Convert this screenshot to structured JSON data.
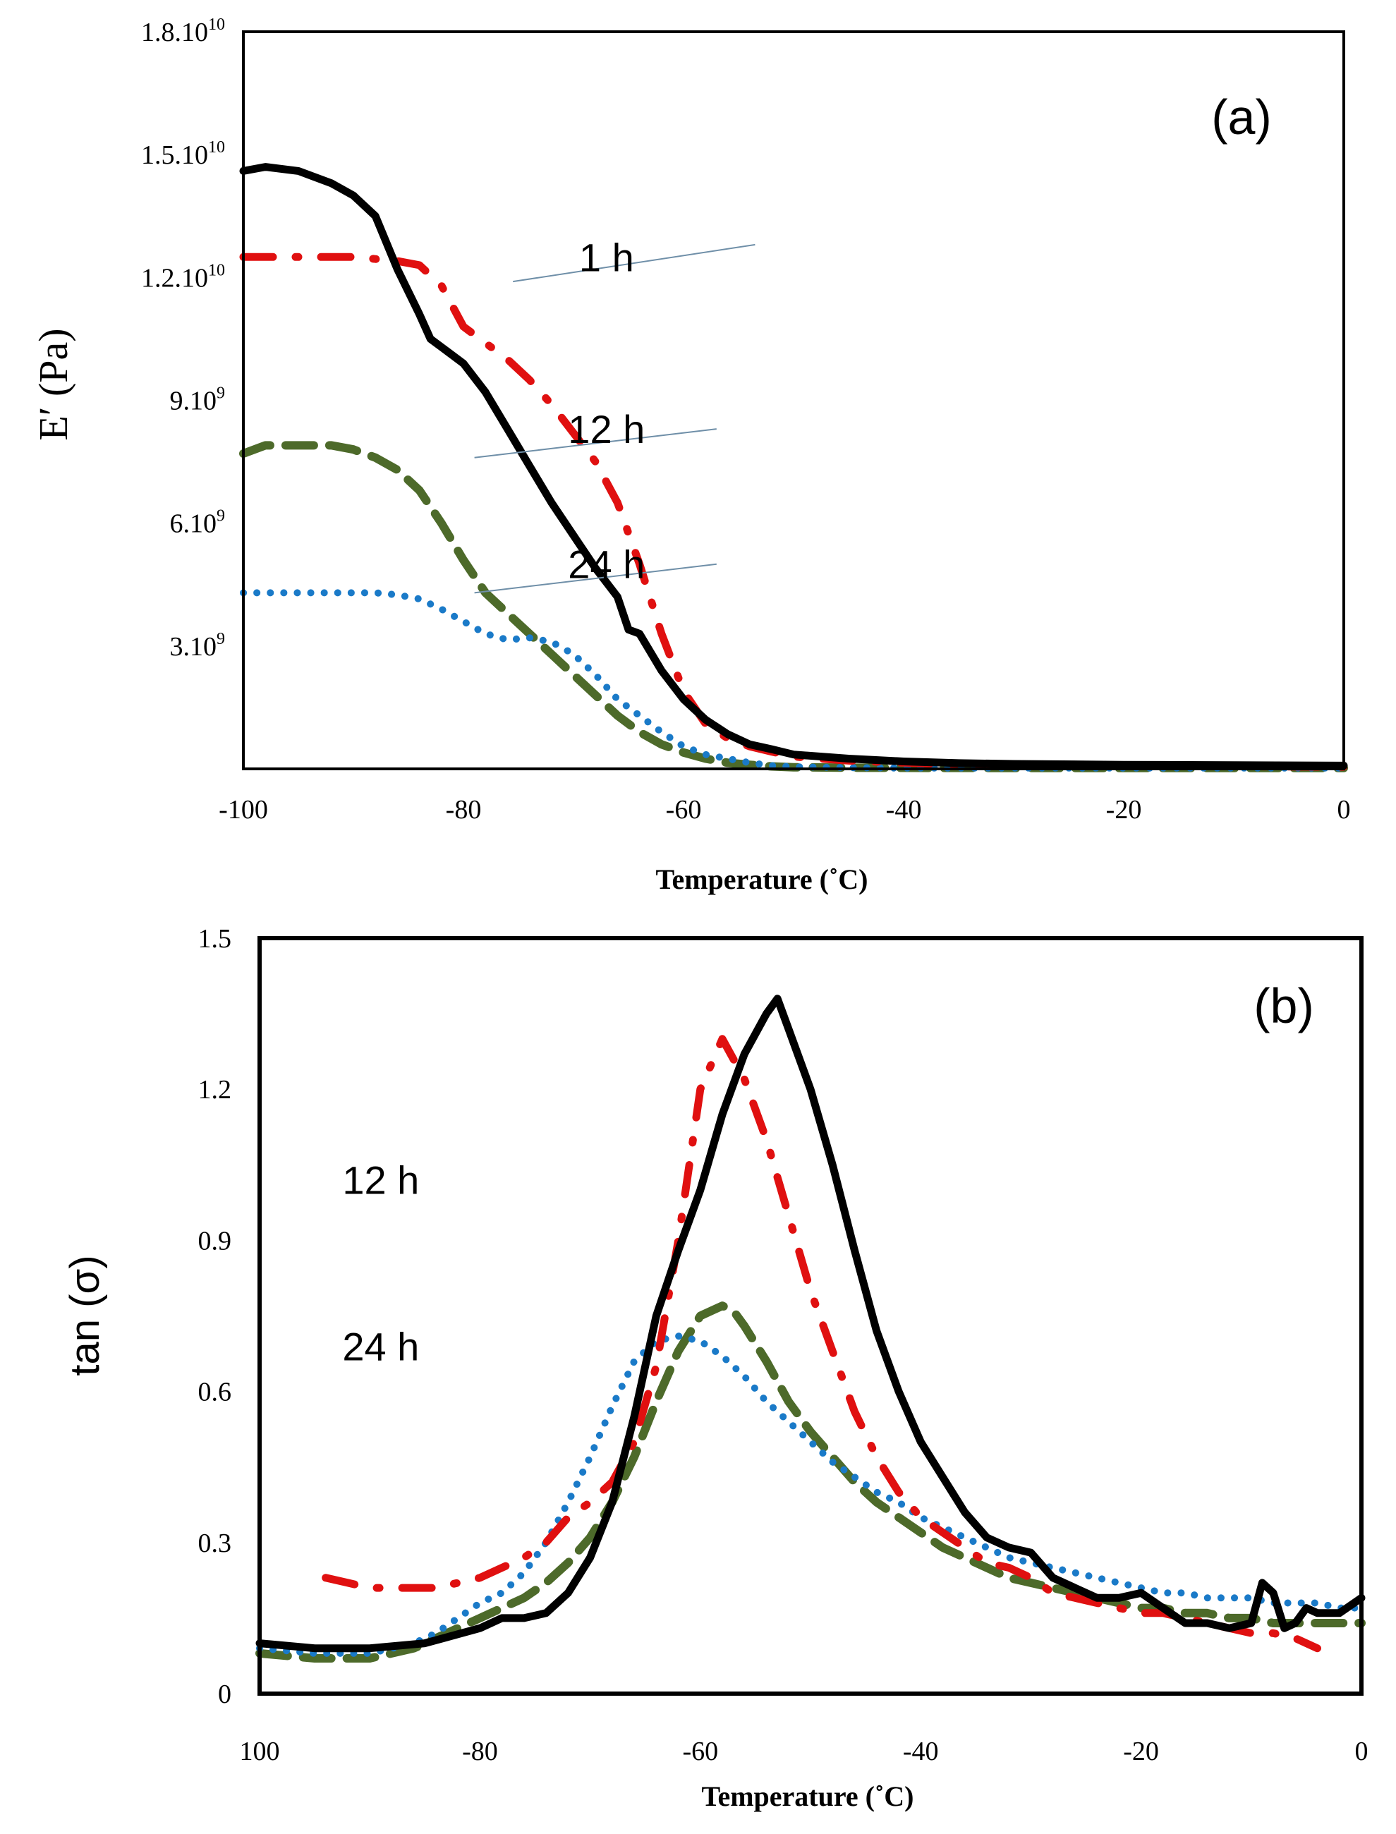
{
  "chart_data": [
    {
      "type": "line",
      "panel_label": "(a)",
      "xlabel": "Temperature (˚C)",
      "ylabel": "E′ (Pa)",
      "xlim": [
        -100,
        0
      ],
      "ylim": [
        0,
        18000000000
      ],
      "x_ticks": [
        {
          "value": -100,
          "label": "-100"
        },
        {
          "value": -80,
          "label": "-80"
        },
        {
          "value": -60,
          "label": "-60"
        },
        {
          "value": -40,
          "label": "-40"
        },
        {
          "value": -20,
          "label": "-20"
        },
        {
          "value": 0,
          "label": "0"
        }
      ],
      "y_ticks": [
        {
          "value": 3000000000,
          "base": "3.10",
          "exp": "9"
        },
        {
          "value": 6000000000,
          "base": "6.10",
          "exp": "9"
        },
        {
          "value": 9000000000,
          "base": "9.10",
          "exp": "9"
        },
        {
          "value": 12000000000,
          "base": "1.2.10",
          "exp": "10"
        },
        {
          "value": 15000000000,
          "base": "1.5.10",
          "exp": "10"
        },
        {
          "value": 18000000000,
          "base": "1.8.10",
          "exp": "10"
        }
      ],
      "annotations": [
        {
          "text": "1 h",
          "x": -67,
          "y": 12500000000,
          "line_from": [
            -75.5,
            11900000000
          ],
          "line_to": [
            -53.5,
            12800000000
          ]
        },
        {
          "text": "12 h",
          "x": -67,
          "y": 8300000000,
          "line_from": [
            -79,
            7600000000
          ],
          "line_to": [
            -57,
            8300000000
          ]
        },
        {
          "text": "24 h",
          "x": -67,
          "y": 5000000000,
          "line_from": [
            -79,
            4300000000
          ],
          "line_to": [
            -57,
            5000000000
          ]
        }
      ],
      "series": [
        {
          "name": "black solid",
          "color": "#000000",
          "style": "solid",
          "x": [
            -100,
            -98,
            -95,
            -92,
            -90,
            -88,
            -86,
            -84,
            -83,
            -82,
            -80,
            -78,
            -76,
            -74,
            -72,
            -70,
            -68,
            -66,
            -65,
            -64,
            -62,
            -60,
            -58,
            -56,
            -54,
            -52,
            -50,
            -45,
            -40,
            -35,
            -30,
            -20,
            -10,
            0
          ],
          "y": [
            14600000000,
            14700000000,
            14600000000,
            14300000000,
            14000000000,
            13500000000,
            12200000000,
            11100000000,
            10500000000,
            10300000000,
            9900000000,
            9200000000,
            8300000000,
            7400000000,
            6500000000,
            5700000000,
            4900000000,
            4200000000,
            3400000000,
            3300000000,
            2400000000,
            1700000000,
            1200000000,
            850000000,
            600000000,
            480000000,
            350000000,
            250000000,
            180000000,
            140000000,
            120000000,
            100000000,
            90000000,
            80000000
          ]
        },
        {
          "name": "red dash-dot",
          "color": "#e01010",
          "style": "dashdot",
          "x": [
            -100,
            -95,
            -90,
            -88,
            -86,
            -84,
            -82,
            -80,
            -78,
            -76,
            -74,
            -72,
            -70,
            -68,
            -66,
            -64,
            -62,
            -60,
            -58,
            -56,
            -54,
            -52,
            -50,
            -45,
            -40,
            -35,
            -30,
            -20,
            -10,
            0
          ],
          "y": [
            12500000000,
            12500000000,
            12500000000,
            12450000000,
            12400000000,
            12300000000,
            11800000000,
            10800000000,
            10400000000,
            10000000000,
            9500000000,
            8900000000,
            8200000000,
            7500000000,
            6500000000,
            5000000000,
            3300000000,
            1900000000,
            1100000000,
            750000000,
            550000000,
            420000000,
            300000000,
            200000000,
            150000000,
            110000000,
            90000000,
            70000000,
            60000000,
            50000000
          ]
        },
        {
          "name": "green dashed",
          "color": "#4d6a2a",
          "style": "dashed",
          "x": [
            -100,
            -98,
            -95,
            -92,
            -90,
            -88,
            -86,
            -84,
            -82,
            -80,
            -78,
            -76,
            -74,
            -72,
            -70,
            -68,
            -66,
            -64,
            -62,
            -60,
            -58,
            -56,
            -54,
            -52,
            -50,
            -45,
            -40,
            -30,
            -20,
            -10,
            0
          ],
          "y": [
            7700000000,
            7900000000,
            7900000000,
            7900000000,
            7800000000,
            7600000000,
            7300000000,
            6800000000,
            6000000000,
            5100000000,
            4300000000,
            3800000000,
            3300000000,
            2800000000,
            2300000000,
            1800000000,
            1300000000,
            900000000,
            600000000,
            400000000,
            250000000,
            150000000,
            100000000,
            60000000,
            40000000,
            30000000,
            25000000,
            20000000,
            20000000,
            20000000,
            20000000
          ]
        },
        {
          "name": "blue dotted",
          "color": "#1a7ac8",
          "style": "dotted",
          "x": [
            -100,
            -96,
            -92,
            -88,
            -86,
            -84,
            -82,
            -80,
            -78,
            -76,
            -74,
            -72,
            -70,
            -68,
            -66,
            -64,
            -62,
            -60,
            -58,
            -56,
            -54,
            -52,
            -50,
            -45,
            -40,
            -30,
            -20,
            -10,
            0
          ],
          "y": [
            4300000000,
            4300000000,
            4300000000,
            4300000000,
            4250000000,
            4150000000,
            3900000000,
            3600000000,
            3300000000,
            3150000000,
            3200000000,
            3100000000,
            2800000000,
            2300000000,
            1700000000,
            1300000000,
            900000000,
            550000000,
            350000000,
            250000000,
            150000000,
            80000000,
            50000000,
            30000000,
            20000000,
            20000000,
            20000000,
            20000000,
            20000000
          ]
        }
      ]
    },
    {
      "type": "line",
      "panel_label": "(b)",
      "xlabel": "Temperature  (˚C)",
      "ylabel": "tan (σ)",
      "xlim": [
        -100,
        0
      ],
      "ylim": [
        0,
        1.5
      ],
      "x_ticks": [
        {
          "value": -100,
          "label": "100"
        },
        {
          "value": -80,
          "label": "-80"
        },
        {
          "value": -60,
          "label": "-60"
        },
        {
          "value": -40,
          "label": "-40"
        },
        {
          "value": -20,
          "label": "-20"
        },
        {
          "value": 0,
          "label": "0"
        }
      ],
      "y_ticks": [
        {
          "value": 0,
          "label": "0"
        },
        {
          "value": 0.3,
          "label": "0.3"
        },
        {
          "value": 0.6,
          "label": "0.6"
        },
        {
          "value": 0.9,
          "label": "0.9"
        },
        {
          "value": 1.2,
          "label": "1.2"
        },
        {
          "value": 1.5,
          "label": "1.5"
        }
      ],
      "annotations": [
        {
          "text": "12 h",
          "x": -89,
          "y": 1.02
        },
        {
          "text": "24 h",
          "x": -89,
          "y": 0.69
        }
      ],
      "series": [
        {
          "name": "black solid",
          "color": "#000000",
          "style": "solid",
          "x": [
            -100,
            -95,
            -90,
            -85,
            -80,
            -78,
            -76,
            -74,
            -72,
            -70,
            -68,
            -66,
            -64,
            -62,
            -60,
            -58,
            -56,
            -54,
            -53,
            -52,
            -50,
            -48,
            -46,
            -44,
            -42,
            -40,
            -38,
            -36,
            -34,
            -32,
            -30,
            -28,
            -26,
            -24,
            -22,
            -20,
            -18,
            -16,
            -14,
            -12,
            -10,
            -9,
            -8,
            -7,
            -6,
            -5,
            -4,
            -2,
            0
          ],
          "y": [
            0.1,
            0.09,
            0.09,
            0.1,
            0.13,
            0.15,
            0.15,
            0.16,
            0.2,
            0.27,
            0.38,
            0.55,
            0.75,
            0.88,
            1.0,
            1.15,
            1.27,
            1.35,
            1.38,
            1.32,
            1.2,
            1.05,
            0.88,
            0.72,
            0.6,
            0.5,
            0.43,
            0.36,
            0.31,
            0.29,
            0.28,
            0.23,
            0.21,
            0.19,
            0.19,
            0.2,
            0.17,
            0.14,
            0.14,
            0.13,
            0.14,
            0.22,
            0.2,
            0.13,
            0.14,
            0.17,
            0.16,
            0.16,
            0.19
          ]
        },
        {
          "name": "red dash-dot",
          "color": "#e01010",
          "style": "dashdot",
          "x": [
            -94,
            -92,
            -90,
            -88,
            -86,
            -84,
            -82,
            -80,
            -78,
            -76,
            -74,
            -72,
            -70,
            -68,
            -66,
            -64,
            -62,
            -60,
            -58,
            -56,
            -54,
            -52,
            -50,
            -48,
            -46,
            -44,
            -42,
            -40,
            -38,
            -36,
            -34,
            -32,
            -30,
            -28,
            -26,
            -24,
            -22,
            -20,
            -18,
            -16,
            -14,
            -12,
            -10,
            -8,
            -6,
            -4
          ],
          "y": [
            0.23,
            0.22,
            0.21,
            0.21,
            0.21,
            0.21,
            0.22,
            0.23,
            0.25,
            0.27,
            0.3,
            0.35,
            0.38,
            0.42,
            0.5,
            0.65,
            0.9,
            1.2,
            1.3,
            1.22,
            1.1,
            0.95,
            0.8,
            0.68,
            0.56,
            0.47,
            0.4,
            0.35,
            0.32,
            0.29,
            0.26,
            0.25,
            0.23,
            0.2,
            0.19,
            0.18,
            0.17,
            0.16,
            0.16,
            0.15,
            0.14,
            0.13,
            0.12,
            0.12,
            0.11,
            0.09
          ]
        },
        {
          "name": "green dashed",
          "color": "#4d6a2a",
          "style": "dashed",
          "x": [
            -100,
            -95,
            -90,
            -86,
            -84,
            -82,
            -80,
            -78,
            -76,
            -74,
            -72,
            -70,
            -68,
            -66,
            -64,
            -62,
            -60,
            -58,
            -57,
            -56,
            -54,
            -52,
            -50,
            -48,
            -46,
            -44,
            -42,
            -40,
            -38,
            -36,
            -34,
            -32,
            -30,
            -28,
            -26,
            -24,
            -22,
            -20,
            -18,
            -16,
            -14,
            -12,
            -10,
            -8,
            -6,
            -4,
            -2,
            0
          ],
          "y": [
            0.08,
            0.07,
            0.07,
            0.09,
            0.11,
            0.13,
            0.15,
            0.17,
            0.19,
            0.22,
            0.26,
            0.31,
            0.38,
            0.47,
            0.58,
            0.68,
            0.75,
            0.77,
            0.76,
            0.73,
            0.66,
            0.58,
            0.52,
            0.47,
            0.42,
            0.38,
            0.35,
            0.32,
            0.29,
            0.27,
            0.25,
            0.23,
            0.22,
            0.21,
            0.2,
            0.19,
            0.18,
            0.17,
            0.17,
            0.16,
            0.16,
            0.15,
            0.15,
            0.14,
            0.14,
            0.14,
            0.14,
            0.14
          ]
        },
        {
          "name": "blue dotted",
          "color": "#1a7ac8",
          "style": "dotted",
          "x": [
            -100,
            -95,
            -90,
            -86,
            -84,
            -82,
            -80,
            -78,
            -76,
            -74,
            -72,
            -70,
            -68,
            -66,
            -64,
            -62,
            -60,
            -58,
            -56,
            -54,
            -52,
            -50,
            -48,
            -46,
            -44,
            -42,
            -40,
            -38,
            -36,
            -34,
            -32,
            -30,
            -28,
            -26,
            -24,
            -22,
            -20,
            -18,
            -16,
            -14,
            -12,
            -10,
            -8,
            -6,
            -4,
            -2,
            0
          ],
          "y": [
            0.09,
            0.08,
            0.08,
            0.1,
            0.12,
            0.15,
            0.18,
            0.2,
            0.24,
            0.3,
            0.38,
            0.47,
            0.57,
            0.66,
            0.7,
            0.71,
            0.7,
            0.67,
            0.63,
            0.58,
            0.54,
            0.5,
            0.46,
            0.43,
            0.4,
            0.38,
            0.35,
            0.33,
            0.31,
            0.29,
            0.27,
            0.26,
            0.25,
            0.24,
            0.23,
            0.22,
            0.21,
            0.2,
            0.2,
            0.19,
            0.19,
            0.19,
            0.18,
            0.18,
            0.18,
            0.17,
            0.17
          ]
        }
      ]
    }
  ]
}
